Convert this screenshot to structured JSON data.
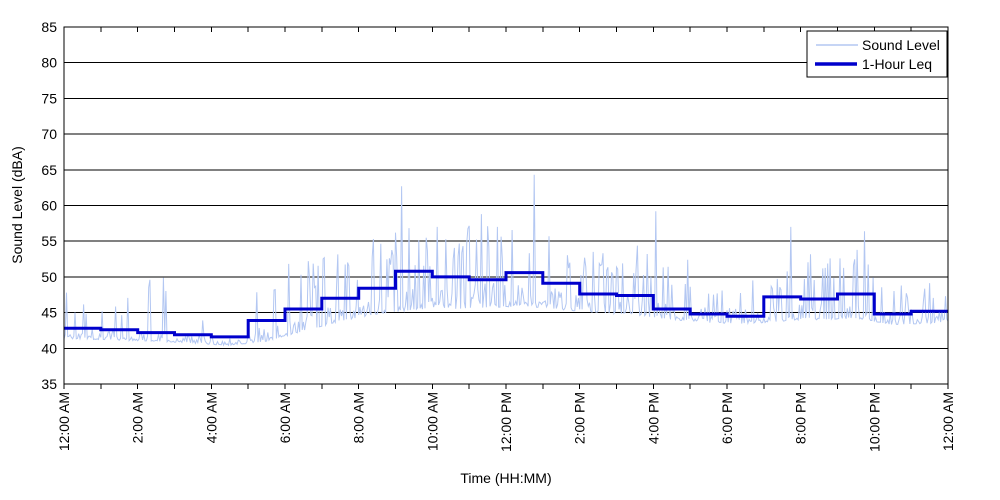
{
  "chart_data": {
    "type": "line",
    "title": "",
    "xlabel": "Time (HH:MM)",
    "ylabel": "Sound Level (dBA)",
    "grid": "horizontal-only",
    "x_axis": {
      "unit": "hours",
      "min": 0,
      "max": 24,
      "minor_tick_every_hours": 1,
      "tick_labels": [
        {
          "hour": 0,
          "label": "12:00 AM"
        },
        {
          "hour": 2,
          "label": "2:00 AM"
        },
        {
          "hour": 4,
          "label": "4:00 AM"
        },
        {
          "hour": 6,
          "label": "6:00 AM"
        },
        {
          "hour": 8,
          "label": "8:00 AM"
        },
        {
          "hour": 10,
          "label": "10:00 AM"
        },
        {
          "hour": 12,
          "label": "12:00 PM"
        },
        {
          "hour": 14,
          "label": "2:00 PM"
        },
        {
          "hour": 16,
          "label": "4:00 PM"
        },
        {
          "hour": 18,
          "label": "6:00 PM"
        },
        {
          "hour": 20,
          "label": "8:00 PM"
        },
        {
          "hour": 22,
          "label": "10:00 PM"
        },
        {
          "hour": 24,
          "label": "12:00 AM"
        }
      ]
    },
    "y_axis": {
      "min": 35,
      "max": 85,
      "tick_step": 5,
      "ticks": [
        35,
        40,
        45,
        50,
        55,
        60,
        65,
        70,
        75,
        80,
        85
      ]
    },
    "legend": {
      "position": "top-right",
      "items": [
        {
          "label": "Sound Level",
          "color": "#b3c7f2",
          "line_width": 1.5
        },
        {
          "label": "1-Hour Leq",
          "color": "#0000cc",
          "line_width": 3.5
        }
      ]
    },
    "colors": {
      "sound_level_line": "#b3c7f2",
      "leq_line": "#0000cc",
      "grid": "#000000",
      "frame": "#000000",
      "background": "#ffffff",
      "text": "#000000"
    },
    "series": [
      {
        "name": "Sound Level",
        "type": "noisy-line",
        "color": "#b3c7f2",
        "synth": {
          "seed": 1337,
          "sample_step_min": 2,
          "hour_base": [
            41.3,
            41.1,
            41.0,
            40.7,
            40.4,
            41.0,
            42.4,
            43.8,
            44.8,
            45.4,
            45.5,
            45.7,
            45.9,
            45.4,
            45.0,
            44.7,
            44.0,
            43.6,
            43.4,
            43.8,
            44.0,
            44.2,
            43.3,
            43.5
          ],
          "hour_amp": [
            1.6,
            1.6,
            1.5,
            1.4,
            1.4,
            2.0,
            2.2,
            2.5,
            3.0,
            3.2,
            3.2,
            3.4,
            3.2,
            3.2,
            3.0,
            2.8,
            2.5,
            2.2,
            2.2,
            2.4,
            2.4,
            2.4,
            2.0,
            2.2
          ],
          "hour_spike_rate": [
            0.1,
            0.12,
            0.1,
            0.08,
            0.08,
            0.16,
            0.2,
            0.22,
            0.25,
            0.28,
            0.3,
            0.3,
            0.3,
            0.28,
            0.25,
            0.25,
            0.2,
            0.18,
            0.18,
            0.2,
            0.2,
            0.22,
            0.15,
            0.15
          ],
          "hour_spike_max": [
            47.5,
            48.0,
            50.5,
            46.5,
            46.5,
            51.5,
            52.3,
            53.5,
            55.5,
            57.0,
            57.0,
            58.5,
            57.0,
            56.0,
            55.0,
            54.5,
            53.0,
            50.0,
            50.5,
            52.0,
            54.5,
            55.5,
            50.0,
            49.5
          ],
          "notable_peaks": [
            {
              "t_hours": 0.07,
              "v": 47.8
            },
            {
              "t_hours": 9.15,
              "v": 62.7
            },
            {
              "t_hours": 10.13,
              "v": 57.0
            },
            {
              "t_hours": 11.32,
              "v": 58.8
            },
            {
              "t_hours": 12.75,
              "v": 64.3
            },
            {
              "t_hours": 13.17,
              "v": 55.7
            },
            {
              "t_hours": 16.05,
              "v": 59.2
            },
            {
              "t_hours": 19.73,
              "v": 57.0
            },
            {
              "t_hours": 21.72,
              "v": 56.4
            },
            {
              "t_hours": 23.93,
              "v": 47.3
            }
          ]
        }
      },
      {
        "name": "1-Hour Leq",
        "type": "step-line",
        "color": "#0000cc",
        "hourly_leq_dba": [
          42.8,
          42.6,
          42.2,
          41.9,
          41.6,
          43.9,
          45.5,
          47.0,
          48.4,
          50.8,
          50.0,
          49.6,
          50.6,
          49.1,
          47.6,
          47.4,
          45.5,
          44.8,
          44.5,
          47.2,
          46.9,
          47.6,
          44.8,
          45.2
        ]
      }
    ]
  }
}
